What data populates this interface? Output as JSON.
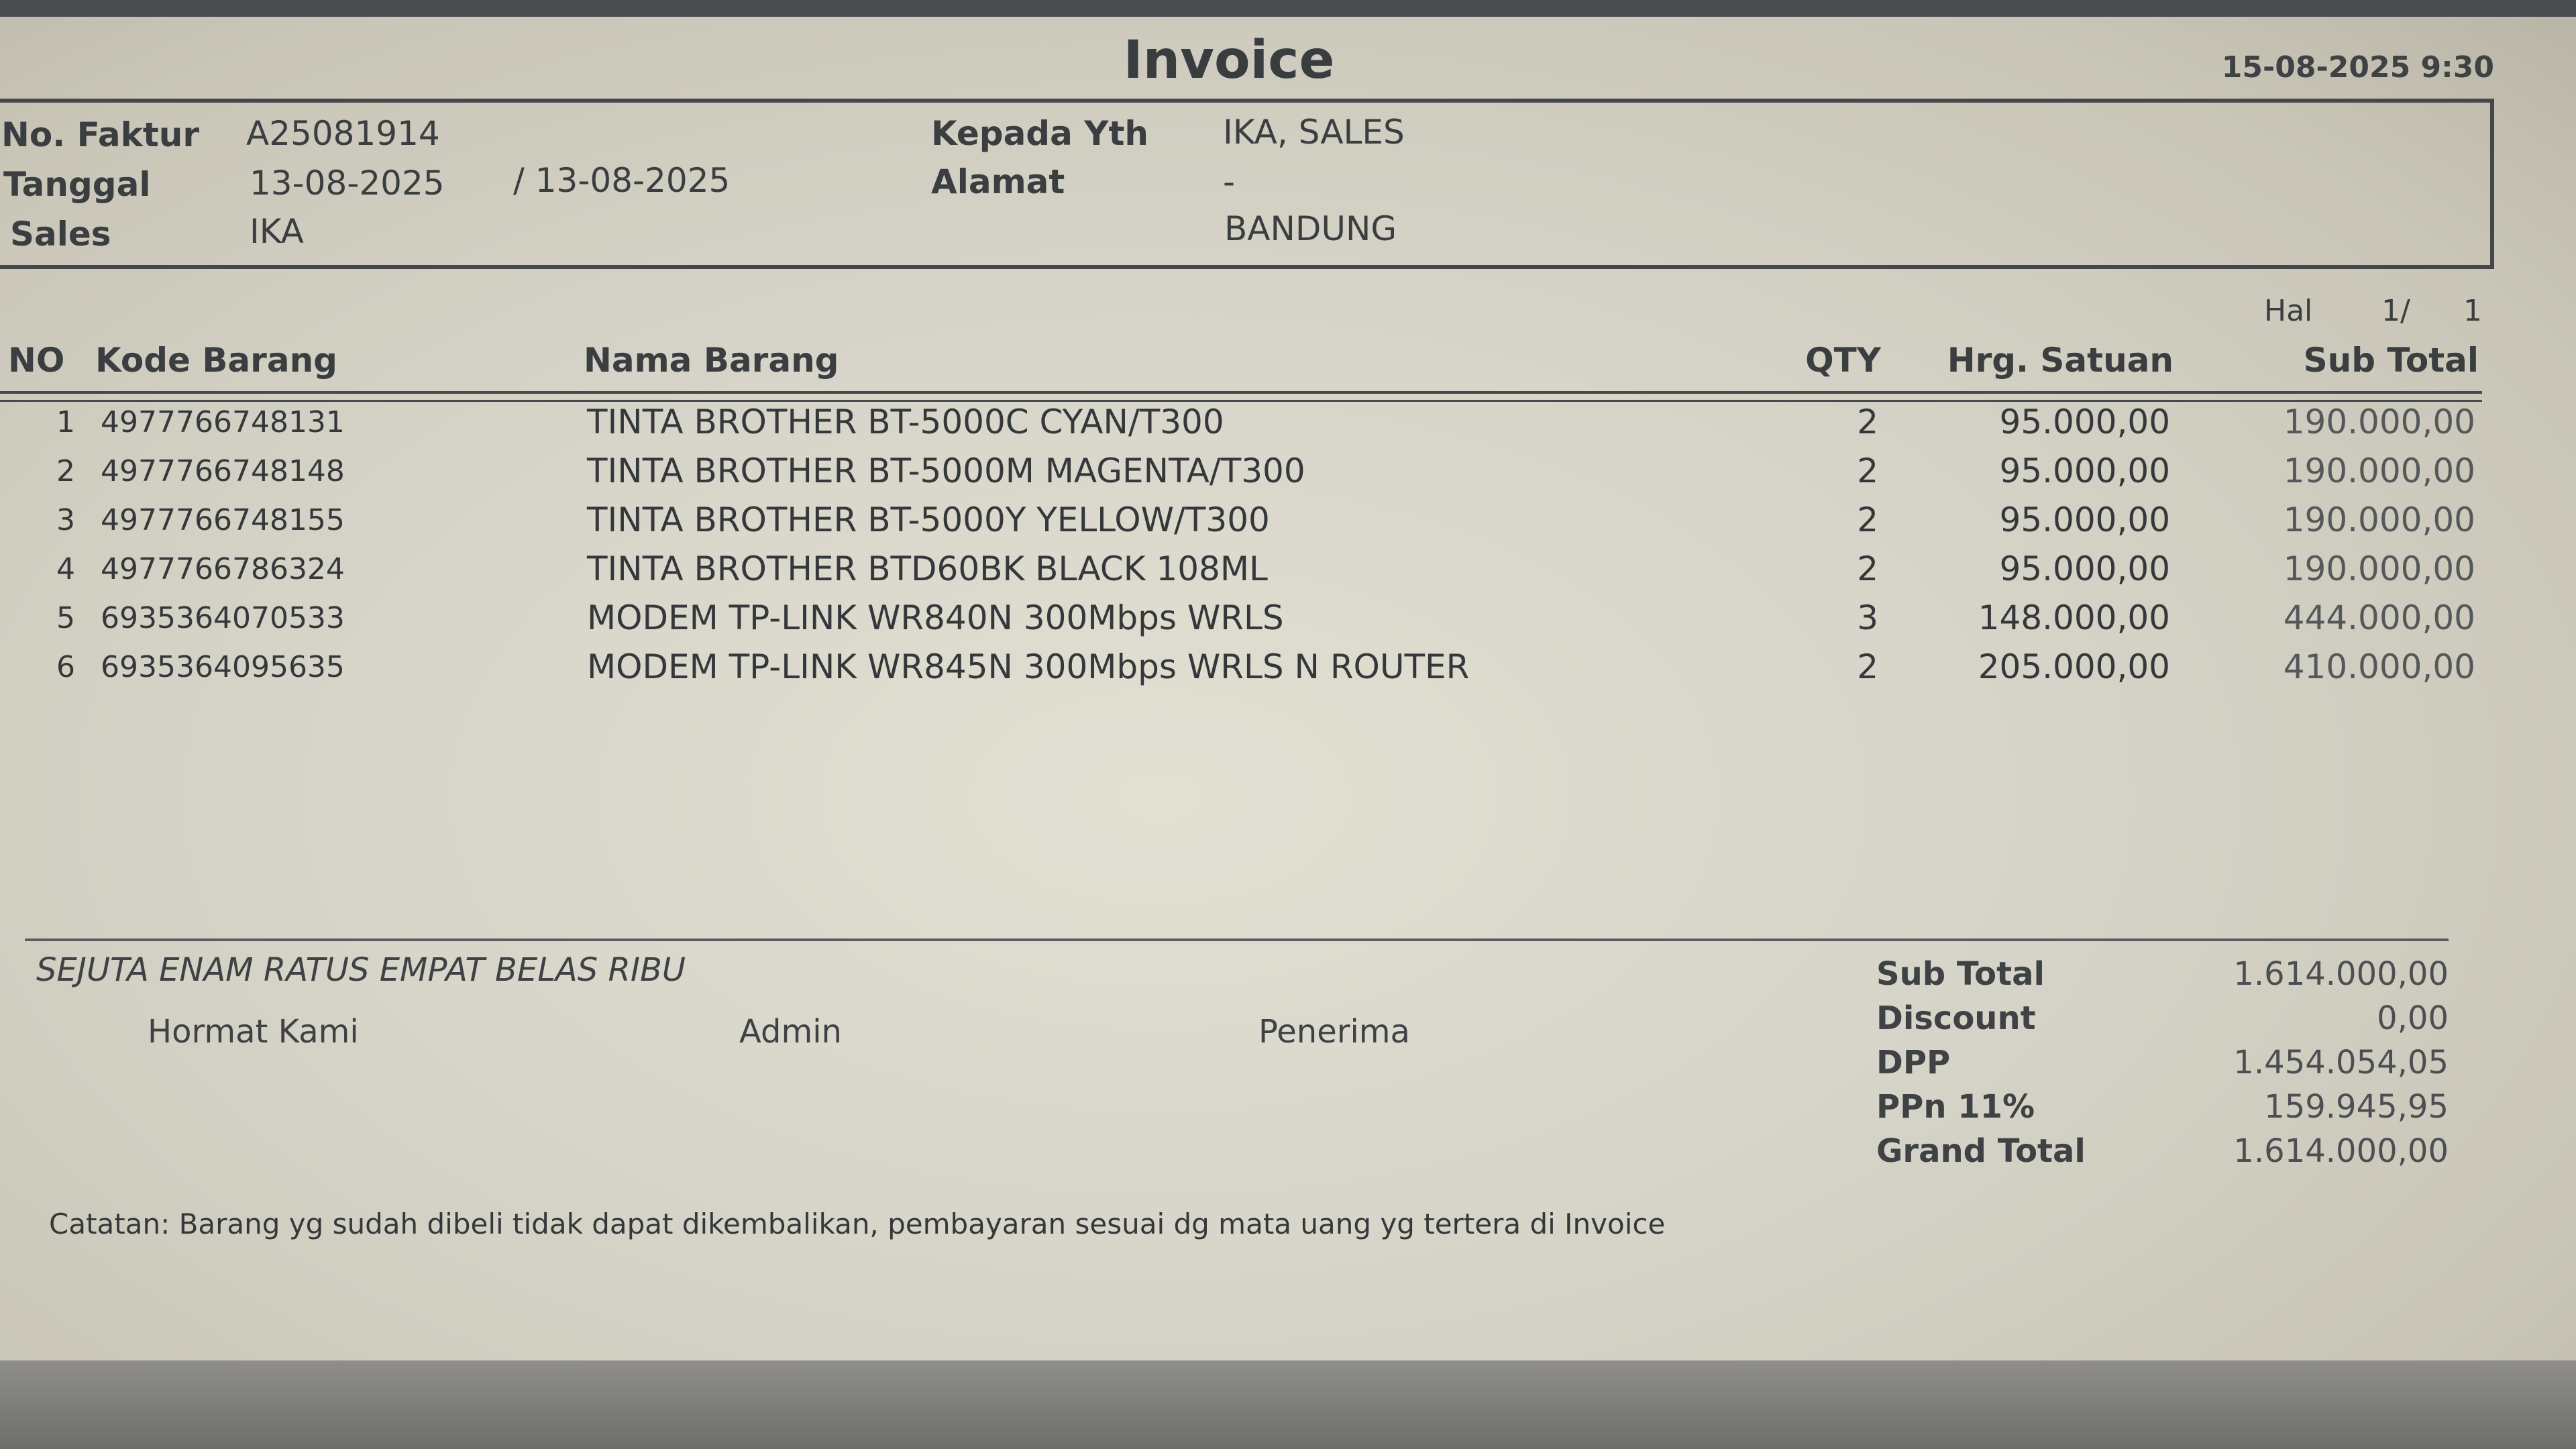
{
  "title": "Invoice",
  "print_datetime": "15-08-2025 9:30",
  "header": {
    "no_faktur_label": "No. Faktur",
    "no_faktur": "A25081914",
    "tanggal_label": "Tanggal",
    "tanggal": "13-08-2025",
    "tanggal2": "/ 13-08-2025",
    "sales_label": "Sales",
    "sales": "IKA",
    "kepada_label": "Kepada Yth",
    "kepada": "IKA, SALES",
    "alamat_label": "Alamat",
    "alamat": "-",
    "kota": "BANDUNG"
  },
  "page": {
    "label": "Hal",
    "current": "1/",
    "total": "1"
  },
  "columns": {
    "no": "NO",
    "kode": "Kode Barang",
    "nama": "Nama Barang",
    "qty": "QTY",
    "harga": "Hrg. Satuan",
    "subtotal": "Sub Total"
  },
  "items": [
    {
      "no": "1",
      "kode": "4977766748131",
      "nama": "TINTA BROTHER BT-5000C CYAN/T300",
      "qty": "2",
      "harga": "95.000,00",
      "subtotal": "190.000,00"
    },
    {
      "no": "2",
      "kode": "4977766748148",
      "nama": "TINTA BROTHER BT-5000M MAGENTA/T300",
      "qty": "2",
      "harga": "95.000,00",
      "subtotal": "190.000,00"
    },
    {
      "no": "3",
      "kode": "4977766748155",
      "nama": "TINTA BROTHER BT-5000Y YELLOW/T300",
      "qty": "2",
      "harga": "95.000,00",
      "subtotal": "190.000,00"
    },
    {
      "no": "4",
      "kode": "4977766786324",
      "nama": "TINTA BROTHER BTD60BK BLACK 108ML",
      "qty": "2",
      "harga": "95.000,00",
      "subtotal": "190.000,00"
    },
    {
      "no": "5",
      "kode": "6935364070533",
      "nama": "MODEM TP-LINK WR840N 300Mbps WRLS",
      "qty": "3",
      "harga": "148.000,00",
      "subtotal": "444.000,00"
    },
    {
      "no": "6",
      "kode": "6935364095635",
      "nama": "MODEM TP-LINK WR845N 300Mbps WRLS N ROUTER",
      "qty": "2",
      "harga": "205.000,00",
      "subtotal": "410.000,00"
    }
  ],
  "terbilang": "SEJUTA ENAM RATUS EMPAT BELAS RIBU",
  "signatures": {
    "hormat": "Hormat Kami",
    "admin": "Admin",
    "penerima": "Penerima"
  },
  "totals": [
    {
      "label": "Sub Total",
      "value": "1.614.000,00"
    },
    {
      "label": "Discount",
      "value": "0,00"
    },
    {
      "label": "DPP",
      "value": "1.454.054,05"
    },
    {
      "label": "PPn 11%",
      "value": "159.945,95"
    },
    {
      "label": "Grand Total",
      "value": "1.614.000,00"
    }
  ],
  "note": "Catatan: Barang yg sudah dibeli tidak dapat dikembalikan, pembayaran sesuai dg mata uang yg tertera di Invoice"
}
